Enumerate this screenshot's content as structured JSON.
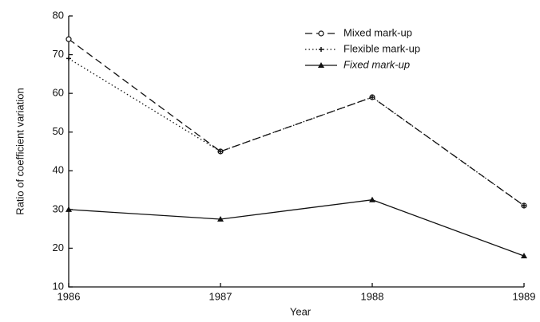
{
  "chart_data": {
    "type": "line",
    "x_label": "Year",
    "y_label": "Ratio of coefficient variation",
    "x": [
      1986,
      1987,
      1988,
      1989
    ],
    "xlim": [
      1986,
      1989
    ],
    "xticks": [
      1986,
      1987,
      1988,
      1989
    ],
    "ylim": [
      10,
      80
    ],
    "yticks": [
      10,
      20,
      30,
      40,
      50,
      60,
      70,
      80
    ],
    "legend": "upper right",
    "series": [
      {
        "name": "Mixed mark-up",
        "color": "#111111",
        "dash": "9,5",
        "marker": "circle",
        "values": [
          74,
          45,
          59,
          31
        ]
      },
      {
        "name": "Flexible mark-up",
        "color": "#111111",
        "dash": "1.5,3",
        "marker": "plus",
        "values": [
          69,
          45,
          59,
          31
        ]
      },
      {
        "name": "Fixed mark-up",
        "color": "#111111",
        "dash": "none",
        "marker": "triangle",
        "values": [
          30,
          27.5,
          32.5,
          18
        ]
      }
    ]
  }
}
